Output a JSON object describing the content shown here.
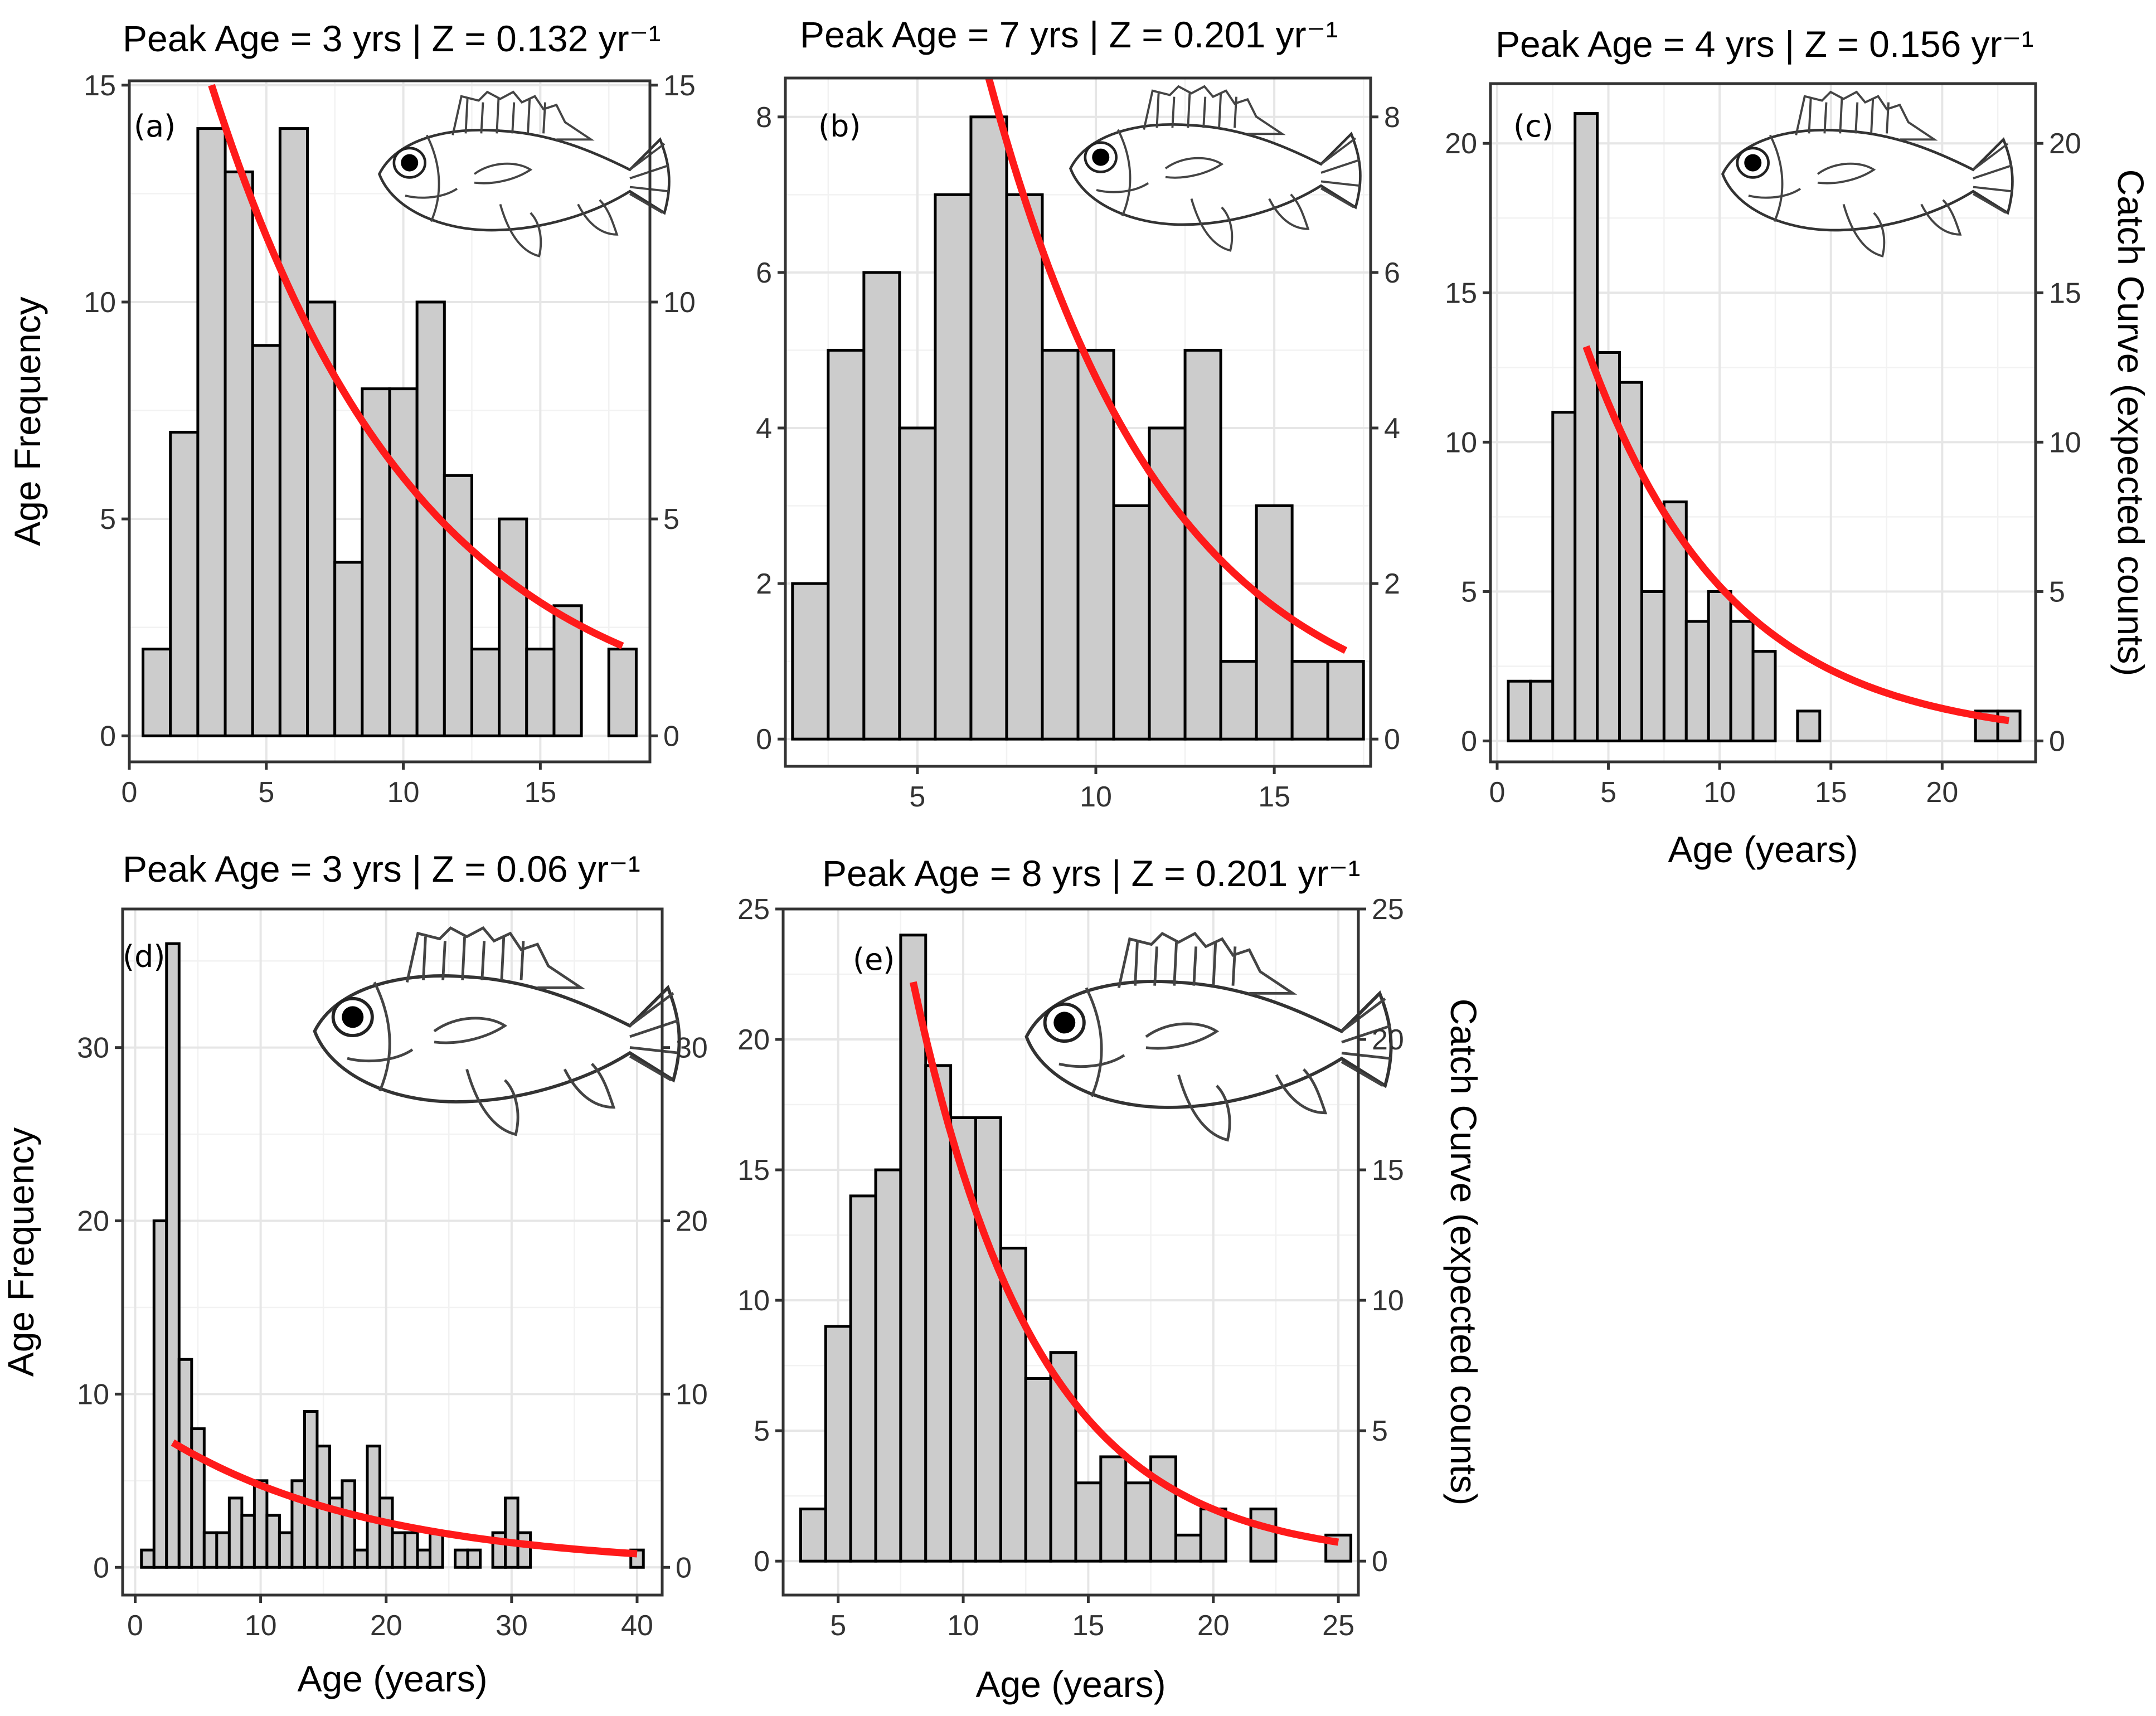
{
  "figure": {
    "left_axis_title": "Age Frequency",
    "right_axis_title": "Catch Curve (expected counts)",
    "x_axis_title": "Age (years)"
  },
  "colors": {
    "bar_fill": "#cccccc",
    "bar_stroke": "#000000",
    "curve": "#ff1a1a",
    "grid": "#e6e6e6"
  },
  "chart_data": [
    {
      "id": "a",
      "type": "bar",
      "label": "(a)",
      "title": "Peak Age = 3 yrs | Z = 0.132 yr⁻¹",
      "peak_age": 3,
      "z": 0.132,
      "xlim": [
        0,
        19
      ],
      "ylim": [
        -0.6,
        15.1
      ],
      "xticks": [
        0,
        5,
        10,
        15
      ],
      "yticks": [
        0,
        5,
        10,
        15
      ],
      "x": [
        1,
        2,
        3,
        4,
        5,
        6,
        7,
        8,
        9,
        10,
        11,
        12,
        13,
        14,
        15,
        16,
        17,
        18
      ],
      "values": [
        2,
        7,
        14,
        13,
        9,
        14,
        10,
        4,
        8,
        8,
        10,
        6,
        2,
        5,
        2,
        3,
        0,
        2
      ],
      "curve": {
        "x_start": 3,
        "x_end": 18,
        "start": 15.0
      },
      "xlabel": "",
      "ylabel": "Age Frequency",
      "ylabel_right": "",
      "legend": "none"
    },
    {
      "id": "b",
      "type": "bar",
      "label": "(b)",
      "title": "Peak Age = 7 yrs | Z = 0.201 yr⁻¹",
      "peak_age": 7,
      "z": 0.201,
      "xlim": [
        1.3,
        17.7
      ],
      "ylim": [
        -0.35,
        8.5
      ],
      "xticks": [
        5,
        10,
        15
      ],
      "yticks": [
        0,
        2,
        4,
        6,
        8
      ],
      "x": [
        2,
        3,
        4,
        5,
        6,
        7,
        8,
        9,
        10,
        11,
        12,
        13,
        14,
        15,
        16,
        17
      ],
      "values": [
        2,
        5,
        6,
        4,
        7,
        8,
        7,
        5,
        5,
        3,
        4,
        5,
        1,
        3,
        1,
        1
      ],
      "curve": {
        "x_start": 7,
        "x_end": 17,
        "start": 8.5
      },
      "xlabel": "",
      "ylabel": "",
      "ylabel_right": "",
      "legend": "none"
    },
    {
      "id": "c",
      "type": "bar",
      "label": "(c)",
      "title": "Peak Age = 4 yrs | Z = 0.156 yr⁻¹",
      "peak_age": 4,
      "z": 0.156,
      "xlim": [
        -0.3,
        24.2
      ],
      "ylim": [
        -0.7,
        22.0
      ],
      "xticks": [
        0,
        5,
        10,
        15,
        20
      ],
      "yticks": [
        0,
        5,
        10,
        15,
        20
      ],
      "x": [
        1,
        2,
        3,
        4,
        5,
        6,
        7,
        8,
        9,
        10,
        11,
        12,
        13,
        14,
        15,
        16,
        17,
        18,
        19,
        20,
        21,
        22,
        23
      ],
      "values": [
        2,
        2,
        11,
        21,
        13,
        12,
        5,
        8,
        4,
        5,
        4,
        3,
        0,
        1,
        0,
        0,
        0,
        0,
        0,
        0,
        0,
        1,
        1
      ],
      "curve": {
        "x_start": 4,
        "x_end": 23,
        "start": 13.2
      },
      "xlabel": "Age (years)",
      "ylabel": "",
      "ylabel_right": "Catch Curve (expected counts)",
      "legend": "none"
    },
    {
      "id": "d",
      "type": "bar",
      "label": "(d)",
      "title": "Peak Age = 3 yrs | Z = 0.06 yr⁻¹",
      "peak_age": 3,
      "z": 0.06,
      "xlim": [
        -1,
        42
      ],
      "ylim": [
        -1.6,
        38.0
      ],
      "xticks": [
        0,
        10,
        20,
        30,
        40
      ],
      "yticks": [
        0,
        10,
        20,
        30
      ],
      "x": [
        1,
        2,
        3,
        4,
        5,
        6,
        7,
        8,
        9,
        10,
        11,
        12,
        13,
        14,
        15,
        16,
        17,
        18,
        19,
        20,
        21,
        22,
        23,
        24,
        25,
        26,
        27,
        28,
        29,
        30,
        31,
        32,
        33,
        34,
        35,
        36,
        37,
        38,
        39,
        40
      ],
      "values": [
        1,
        20,
        36,
        12,
        8,
        2,
        2,
        4,
        3,
        5,
        3,
        2,
        5,
        9,
        7,
        4,
        5,
        1,
        7,
        4,
        2,
        2,
        1,
        2,
        0,
        1,
        1,
        0,
        2,
        4,
        2,
        0,
        0,
        0,
        0,
        0,
        0,
        0,
        0,
        1
      ],
      "curve": {
        "x_start": 3,
        "x_end": 40,
        "start": 7.2
      },
      "xlabel": "Age (years)",
      "ylabel": "Age Frequency",
      "ylabel_right": "",
      "legend": "none"
    },
    {
      "id": "e",
      "type": "bar",
      "label": "(e)",
      "title": "Peak Age = 8 yrs | Z = 0.201 yr⁻¹",
      "peak_age": 8,
      "z": 0.201,
      "xlim": [
        2.8,
        25.8
      ],
      "ylim": [
        -1.3,
        25.0
      ],
      "xticks": [
        5,
        10,
        15,
        20,
        25
      ],
      "yticks": [
        0,
        5,
        10,
        15,
        20,
        25
      ],
      "x": [
        4,
        5,
        6,
        7,
        8,
        9,
        10,
        11,
        12,
        13,
        14,
        15,
        16,
        17,
        18,
        19,
        20,
        21,
        22,
        23,
        24,
        25
      ],
      "values": [
        2,
        9,
        14,
        15,
        24,
        19,
        17,
        17,
        12,
        7,
        8,
        3,
        4,
        3,
        4,
        1,
        2,
        0,
        2,
        0,
        0,
        1
      ],
      "curve": {
        "x_start": 8,
        "x_end": 25,
        "start": 22.2
      },
      "xlabel": "Age (years)",
      "ylabel": "",
      "ylabel_right": "Catch Curve (expected counts)",
      "legend": "none"
    }
  ]
}
